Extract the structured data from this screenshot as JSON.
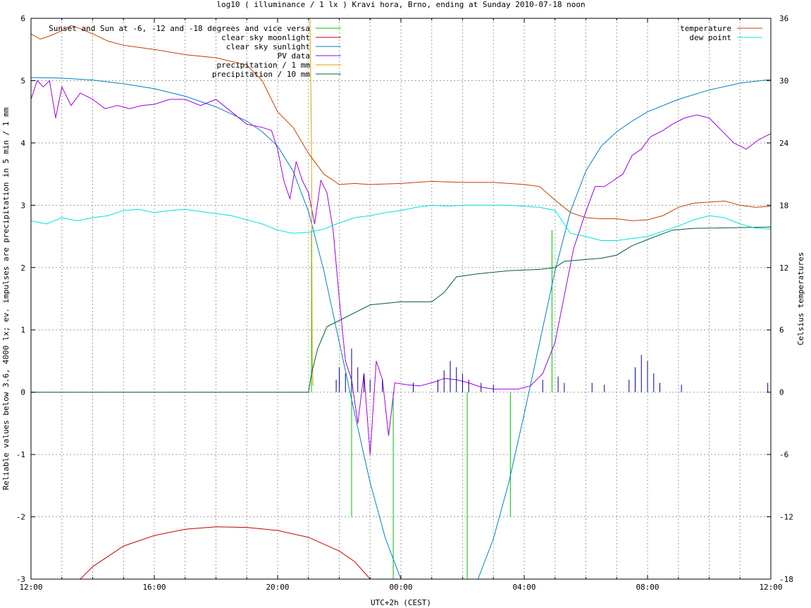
{
  "chart_data": {
    "type": "line",
    "title": "log10 ( illuminance / 1 lx ) Kravi hora, Brno, ending at Sunday 2010-07-18 noon",
    "xlabel": "UTC+2h (CEST)",
    "ylabel": "Reliable values below 3.6, 4000 lx; ev. impulses are precipitation in 5 min / 1 mm",
    "y2label": "Celsius temperatures",
    "x_unit": "hours since 12:00",
    "xlim": [
      0,
      24
    ],
    "ylim": [
      -3,
      6
    ],
    "y2lim": [
      -18,
      36
    ],
    "grid": true,
    "x_ticks": [
      {
        "x": 0,
        "label": "12:00"
      },
      {
        "x": 4,
        "label": "16:00"
      },
      {
        "x": 8,
        "label": "20:00"
      },
      {
        "x": 12,
        "label": "00:00"
      },
      {
        "x": 16,
        "label": "04:00"
      },
      {
        "x": 20,
        "label": "08:00"
      },
      {
        "x": 24,
        "label": "12:00"
      }
    ],
    "y_ticks": [
      -3,
      -2,
      -1,
      0,
      1,
      2,
      3,
      4,
      5,
      6
    ],
    "y2_ticks": [
      -18,
      -12,
      -6,
      0,
      6,
      12,
      18,
      24,
      30,
      36
    ],
    "legend_left_placement": "top-left",
    "legend_right_placement": "top-right",
    "series": [
      {
        "name": "Sunset and Sun at -6, -12 and -18 degrees and vice versa",
        "color": "#00c000",
        "type": "impulse",
        "axis": "y1",
        "impulses": [
          {
            "x": 9.1,
            "y": 2.6
          },
          {
            "x": 10.4,
            "y": -2.0
          },
          {
            "x": 11.75,
            "y": -3
          },
          {
            "x": 14.15,
            "y": -3
          },
          {
            "x": 15.55,
            "y": -2.0
          },
          {
            "x": 16.9,
            "y": 2.6
          }
        ]
      },
      {
        "name": "clear sky moonlight",
        "color": "#c00000",
        "type": "line",
        "axis": "y1",
        "points": [
          [
            1.6,
            -3.0
          ],
          [
            2.0,
            -2.8
          ],
          [
            3.0,
            -2.47
          ],
          [
            4.0,
            -2.3
          ],
          [
            5.0,
            -2.2
          ],
          [
            6.0,
            -2.16
          ],
          [
            7.0,
            -2.17
          ],
          [
            8.0,
            -2.22
          ],
          [
            9.0,
            -2.33
          ],
          [
            10.0,
            -2.55
          ],
          [
            10.5,
            -2.72
          ],
          [
            11.0,
            -3.0
          ]
        ]
      },
      {
        "name": "clear sky sunlight",
        "color": "#0080c0",
        "type": "line",
        "axis": "y1",
        "points": [
          [
            0,
            5.05
          ],
          [
            1,
            5.04
          ],
          [
            2,
            5.01
          ],
          [
            3,
            4.95
          ],
          [
            4,
            4.87
          ],
          [
            5,
            4.75
          ],
          [
            6,
            4.58
          ],
          [
            7,
            4.35
          ],
          [
            7.5,
            4.18
          ],
          [
            8,
            3.95
          ],
          [
            8.5,
            3.55
          ],
          [
            9,
            2.9
          ],
          [
            9.5,
            1.95
          ],
          [
            10,
            0.8
          ],
          [
            10.5,
            -0.35
          ],
          [
            11,
            -1.45
          ],
          [
            11.5,
            -2.35
          ],
          [
            12,
            -3.0
          ],
          [
            14.5,
            -3.0
          ],
          [
            15,
            -2.35
          ],
          [
            15.5,
            -1.45
          ],
          [
            16,
            -0.35
          ],
          [
            16.5,
            0.8
          ],
          [
            17,
            1.95
          ],
          [
            17.5,
            2.9
          ],
          [
            18,
            3.55
          ],
          [
            18.5,
            3.95
          ],
          [
            19,
            4.18
          ],
          [
            19.5,
            4.35
          ],
          [
            20,
            4.5
          ],
          [
            21,
            4.7
          ],
          [
            22,
            4.85
          ],
          [
            23,
            4.96
          ],
          [
            24,
            5.02
          ]
        ]
      },
      {
        "name": "PV data",
        "color": "#9900e0",
        "type": "line",
        "axis": "y1",
        "points": [
          [
            0,
            4.7
          ],
          [
            0.2,
            5.0
          ],
          [
            0.4,
            4.9
          ],
          [
            0.6,
            5.0
          ],
          [
            0.8,
            4.4
          ],
          [
            1,
            4.9
          ],
          [
            1.3,
            4.6
          ],
          [
            1.6,
            4.8
          ],
          [
            2,
            4.7
          ],
          [
            2.4,
            4.55
          ],
          [
            2.8,
            4.6
          ],
          [
            3.2,
            4.55
          ],
          [
            3.6,
            4.6
          ],
          [
            4,
            4.62
          ],
          [
            4.5,
            4.7
          ],
          [
            5,
            4.7
          ],
          [
            5.5,
            4.6
          ],
          [
            6,
            4.7
          ],
          [
            6.5,
            4.5
          ],
          [
            7,
            4.3
          ],
          [
            7.5,
            4.25
          ],
          [
            7.8,
            4.2
          ],
          [
            8.0,
            3.9
          ],
          [
            8.2,
            3.4
          ],
          [
            8.4,
            3.1
          ],
          [
            8.6,
            3.7
          ],
          [
            8.8,
            3.4
          ],
          [
            9.0,
            3.2
          ],
          [
            9.2,
            2.7
          ],
          [
            9.4,
            3.4
          ],
          [
            9.6,
            3.2
          ],
          [
            9.8,
            2.6
          ],
          [
            10.0,
            1.5
          ],
          [
            10.2,
            0.5
          ],
          [
            10.4,
            0.2
          ],
          [
            10.6,
            -0.5
          ],
          [
            10.8,
            0.3
          ],
          [
            11.0,
            -1.0
          ],
          [
            11.2,
            0.5
          ],
          [
            11.4,
            0.2
          ],
          [
            11.6,
            -0.7
          ],
          [
            11.8,
            0.15
          ],
          [
            12.2,
            0.12
          ],
          [
            12.6,
            0.1
          ],
          [
            13.0,
            0.15
          ],
          [
            13.4,
            0.22
          ],
          [
            13.8,
            0.2
          ],
          [
            14.2,
            0.15
          ],
          [
            14.6,
            0.08
          ],
          [
            15.0,
            0.05
          ],
          [
            15.4,
            0.05
          ],
          [
            15.8,
            0.05
          ],
          [
            16.2,
            0.1
          ],
          [
            16.6,
            0.3
          ],
          [
            17.0,
            0.8
          ],
          [
            17.2,
            1.3
          ],
          [
            17.4,
            1.8
          ],
          [
            17.6,
            2.3
          ],
          [
            17.8,
            2.6
          ],
          [
            18.0,
            2.9
          ],
          [
            18.3,
            3.3
          ],
          [
            18.6,
            3.3
          ],
          [
            18.9,
            3.4
          ],
          [
            19.2,
            3.5
          ],
          [
            19.5,
            3.8
          ],
          [
            19.8,
            3.9
          ],
          [
            20.1,
            4.1
          ],
          [
            20.5,
            4.2
          ],
          [
            20.8,
            4.3
          ],
          [
            21.2,
            4.4
          ],
          [
            21.6,
            4.45
          ],
          [
            22.0,
            4.4
          ],
          [
            22.4,
            4.2
          ],
          [
            22.8,
            4.0
          ],
          [
            23.2,
            3.9
          ],
          [
            23.6,
            4.05
          ],
          [
            24,
            4.15
          ]
        ]
      },
      {
        "name": "precipitation / 1 mm",
        "color": "#e0a000",
        "type": "line",
        "axis": "y1",
        "points": [
          [
            9.05,
            6.0
          ],
          [
            9.1,
            4.0
          ],
          [
            9.12,
            0.6
          ],
          [
            9.15,
            0.1
          ]
        ]
      },
      {
        "name": "precipitation / 10 mm",
        "color": "#006030",
        "type": "line",
        "axis": "y1",
        "points": [
          [
            0,
            0
          ],
          [
            9.0,
            0
          ],
          [
            9.1,
            0.3
          ],
          [
            9.3,
            0.7
          ],
          [
            9.6,
            1.05
          ],
          [
            10.2,
            1.2
          ],
          [
            11.0,
            1.4
          ],
          [
            12.0,
            1.45
          ],
          [
            13.0,
            1.45
          ],
          [
            13.4,
            1.6
          ],
          [
            13.8,
            1.85
          ],
          [
            14.5,
            1.9
          ],
          [
            15.5,
            1.95
          ],
          [
            16.5,
            1.97
          ],
          [
            17.0,
            2.0
          ],
          [
            17.3,
            2.1
          ],
          [
            18.5,
            2.15
          ],
          [
            19.0,
            2.2
          ],
          [
            19.5,
            2.35
          ],
          [
            20.0,
            2.45
          ],
          [
            20.8,
            2.6
          ],
          [
            21.5,
            2.63
          ],
          [
            24,
            2.65
          ]
        ]
      },
      {
        "name": "temperature",
        "color": "#c04000",
        "type": "line",
        "axis": "y2",
        "points": [
          [
            0,
            34.5
          ],
          [
            0.3,
            34.0
          ],
          [
            0.6,
            34.3
          ],
          [
            1.0,
            34.8
          ],
          [
            1.3,
            35.3
          ],
          [
            1.6,
            35.0
          ],
          [
            2.0,
            34.5
          ],
          [
            2.5,
            33.8
          ],
          [
            3.0,
            33.4
          ],
          [
            4.0,
            33.0
          ],
          [
            5.0,
            32.5
          ],
          [
            6.0,
            32.2
          ],
          [
            7.0,
            31.5
          ],
          [
            7.5,
            30.0
          ],
          [
            8.0,
            27.0
          ],
          [
            8.5,
            25.5
          ],
          [
            9.0,
            23.0
          ],
          [
            9.5,
            21.0
          ],
          [
            10.0,
            20.0
          ],
          [
            10.5,
            20.1
          ],
          [
            11.0,
            20.0
          ],
          [
            12.0,
            20.1
          ],
          [
            13.0,
            20.3
          ],
          [
            14.0,
            20.2
          ],
          [
            15.0,
            20.2
          ],
          [
            16.0,
            20.0
          ],
          [
            16.5,
            19.8
          ],
          [
            17.0,
            18.5
          ],
          [
            17.5,
            17.3
          ],
          [
            18.0,
            16.8
          ],
          [
            18.5,
            16.7
          ],
          [
            19.0,
            16.7
          ],
          [
            19.5,
            16.5
          ],
          [
            20.0,
            16.6
          ],
          [
            20.5,
            17.0
          ],
          [
            21.0,
            17.8
          ],
          [
            21.5,
            18.2
          ],
          [
            22.0,
            18.3
          ],
          [
            22.5,
            18.4
          ],
          [
            23.0,
            18.0
          ],
          [
            23.5,
            17.8
          ],
          [
            24,
            17.9
          ]
        ]
      },
      {
        "name": "dew point",
        "color": "#00e0e0",
        "type": "line",
        "axis": "y2",
        "points": [
          [
            0,
            16.5
          ],
          [
            0.5,
            16.2
          ],
          [
            1.0,
            16.8
          ],
          [
            1.5,
            16.5
          ],
          [
            2.0,
            16.8
          ],
          [
            2.5,
            17.0
          ],
          [
            3.0,
            17.5
          ],
          [
            3.5,
            17.6
          ],
          [
            4.0,
            17.3
          ],
          [
            4.5,
            17.5
          ],
          [
            5.0,
            17.6
          ],
          [
            5.5,
            17.4
          ],
          [
            6.0,
            17.2
          ],
          [
            6.5,
            17.0
          ],
          [
            7.0,
            16.6
          ],
          [
            7.5,
            16.2
          ],
          [
            8.0,
            15.6
          ],
          [
            8.5,
            15.3
          ],
          [
            9.0,
            15.4
          ],
          [
            9.5,
            15.7
          ],
          [
            10.0,
            16.3
          ],
          [
            10.5,
            16.8
          ],
          [
            11.0,
            17.0
          ],
          [
            11.5,
            17.3
          ],
          [
            12.0,
            17.5
          ],
          [
            12.5,
            17.8
          ],
          [
            13.0,
            18.0
          ],
          [
            13.5,
            17.9
          ],
          [
            14.0,
            18.0
          ],
          [
            14.5,
            18.0
          ],
          [
            15.0,
            18.0
          ],
          [
            15.5,
            18.0
          ],
          [
            16.0,
            17.9
          ],
          [
            16.5,
            17.8
          ],
          [
            17.0,
            17.5
          ],
          [
            17.5,
            15.3
          ],
          [
            18.0,
            15.0
          ],
          [
            18.5,
            14.6
          ],
          [
            19.0,
            14.6
          ],
          [
            19.5,
            14.8
          ],
          [
            20.0,
            15.0
          ],
          [
            20.5,
            15.5
          ],
          [
            21.0,
            16.0
          ],
          [
            21.5,
            16.6
          ],
          [
            22.0,
            17.0
          ],
          [
            22.5,
            16.8
          ],
          [
            23.0,
            16.2
          ],
          [
            23.5,
            15.8
          ],
          [
            24,
            15.7
          ]
        ]
      },
      {
        "name": "",
        "color": "#0000a0",
        "type": "impulse",
        "axis": "y1",
        "impulses": [
          {
            "x": 9.9,
            "y": 0.2
          },
          {
            "x": 10.0,
            "y": 0.4
          },
          {
            "x": 10.2,
            "y": 0.3
          },
          {
            "x": 10.4,
            "y": 0.7
          },
          {
            "x": 10.6,
            "y": 0.4
          },
          {
            "x": 10.8,
            "y": 0.3
          },
          {
            "x": 11.0,
            "y": 0.2
          },
          {
            "x": 11.4,
            "y": 0.2
          },
          {
            "x": 12.4,
            "y": 0.15
          },
          {
            "x": 13.2,
            "y": 0.2
          },
          {
            "x": 13.4,
            "y": 0.35
          },
          {
            "x": 13.6,
            "y": 0.5
          },
          {
            "x": 13.8,
            "y": 0.4
          },
          {
            "x": 14.0,
            "y": 0.3
          },
          {
            "x": 14.2,
            "y": 0.2
          },
          {
            "x": 14.6,
            "y": 0.15
          },
          {
            "x": 15.0,
            "y": 0.12
          },
          {
            "x": 16.6,
            "y": 0.2
          },
          {
            "x": 17.1,
            "y": 0.25
          },
          {
            "x": 17.3,
            "y": 0.15
          },
          {
            "x": 18.2,
            "y": 0.15
          },
          {
            "x": 18.6,
            "y": 0.12
          },
          {
            "x": 19.4,
            "y": 0.2
          },
          {
            "x": 19.6,
            "y": 0.4
          },
          {
            "x": 19.8,
            "y": 0.6
          },
          {
            "x": 20.0,
            "y": 0.5
          },
          {
            "x": 20.2,
            "y": 0.3
          },
          {
            "x": 20.4,
            "y": 0.15
          },
          {
            "x": 21.1,
            "y": 0.12
          },
          {
            "x": 23.9,
            "y": 0.15
          }
        ]
      }
    ]
  }
}
